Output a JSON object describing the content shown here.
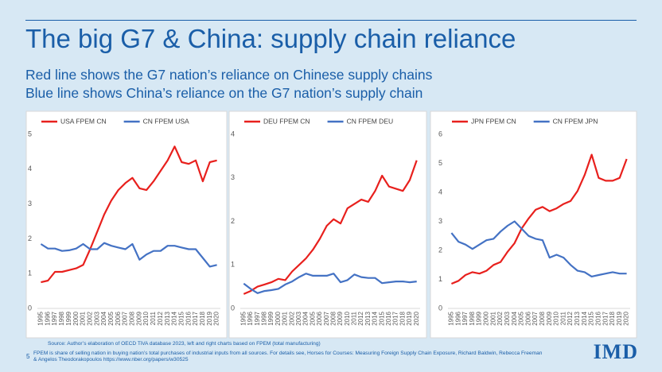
{
  "header": {
    "title": "The big G7 & China: supply chain reliance",
    "subtitles": [
      "Red line shows the G7 nation’s reliance on Chinese supply chains",
      "Blue line shows China’s reliance on the G7 nation’s supply chain"
    ]
  },
  "chart_data": [
    {
      "type": "line",
      "categories": [
        "1995",
        "1996",
        "1997",
        "1998",
        "1999",
        "2000",
        "2001",
        "2002",
        "2003",
        "2004",
        "2005",
        "2006",
        "2007",
        "2008",
        "2009",
        "2010",
        "2011",
        "2012",
        "2013",
        "2014",
        "2015",
        "2016",
        "2017",
        "2018",
        "2019",
        "2020"
      ],
      "series": [
        {
          "name": "USA FPEM CN",
          "color": "#e8201d",
          "values": [
            0.75,
            0.8,
            1.05,
            1.05,
            1.1,
            1.15,
            1.25,
            1.7,
            2.2,
            2.7,
            3.1,
            3.4,
            3.6,
            3.75,
            3.45,
            3.4,
            3.65,
            3.95,
            4.25,
            4.65,
            4.2,
            4.15,
            4.25,
            3.65,
            4.2,
            4.25
          ]
        },
        {
          "name": "CN FPEM USA",
          "color": "#4472c4",
          "values": [
            1.85,
            1.72,
            1.72,
            1.65,
            1.67,
            1.72,
            1.85,
            1.7,
            1.7,
            1.88,
            1.8,
            1.75,
            1.7,
            1.85,
            1.4,
            1.55,
            1.65,
            1.65,
            1.8,
            1.8,
            1.75,
            1.7,
            1.7,
            1.45,
            1.2,
            1.25
          ]
        }
      ],
      "ylim": [
        0,
        5
      ],
      "yticks": [
        0,
        1,
        2,
        3,
        4,
        5
      ]
    },
    {
      "type": "line",
      "categories": [
        "1995",
        "1996",
        "1997",
        "1998",
        "1999",
        "2000",
        "2001",
        "2002",
        "2003",
        "2004",
        "2005",
        "2006",
        "2007",
        "2008",
        "2009",
        "2010",
        "2011",
        "2012",
        "2013",
        "2014",
        "2015",
        "2016",
        "2017",
        "2018",
        "2019",
        "2020"
      ],
      "series": [
        {
          "name": "DEU FPEM CN",
          "color": "#e8201d",
          "values": [
            0.33,
            0.4,
            0.5,
            0.55,
            0.6,
            0.68,
            0.65,
            0.85,
            1.0,
            1.15,
            1.35,
            1.6,
            1.9,
            2.05,
            1.95,
            2.3,
            2.4,
            2.5,
            2.45,
            2.7,
            3.05,
            2.8,
            2.75,
            2.7,
            2.95,
            3.4
          ]
        },
        {
          "name": "CN FPEM DEU",
          "color": "#4472c4",
          "values": [
            0.57,
            0.45,
            0.35,
            0.4,
            0.42,
            0.45,
            0.55,
            0.62,
            0.72,
            0.8,
            0.75,
            0.75,
            0.75,
            0.8,
            0.6,
            0.65,
            0.78,
            0.72,
            0.7,
            0.7,
            0.58,
            0.6,
            0.62,
            0.62,
            0.6,
            0.62
          ]
        }
      ],
      "ylim": [
        0,
        4
      ],
      "yticks": [
        0,
        1,
        2,
        3,
        4
      ]
    },
    {
      "type": "line",
      "categories": [
        "1995",
        "1996",
        "1997",
        "1998",
        "1999",
        "2000",
        "2001",
        "2002",
        "2003",
        "2004",
        "2005",
        "2006",
        "2007",
        "2008",
        "2009",
        "2010",
        "2011",
        "2012",
        "2013",
        "2014",
        "2015",
        "2016",
        "2017",
        "2018",
        "2019",
        "2020"
      ],
      "series": [
        {
          "name": "JPN FPEM CN",
          "color": "#e8201d",
          "values": [
            0.85,
            0.95,
            1.15,
            1.25,
            1.2,
            1.3,
            1.5,
            1.6,
            1.95,
            2.25,
            2.75,
            3.1,
            3.4,
            3.5,
            3.35,
            3.45,
            3.6,
            3.7,
            4.05,
            4.6,
            5.3,
            4.5,
            4.4,
            4.4,
            4.5,
            5.15
          ]
        },
        {
          "name": "CN FPEM JPN",
          "color": "#4472c4",
          "values": [
            2.6,
            2.3,
            2.2,
            2.05,
            2.2,
            2.35,
            2.4,
            2.65,
            2.85,
            3.0,
            2.75,
            2.5,
            2.4,
            2.35,
            1.75,
            1.85,
            1.75,
            1.5,
            1.3,
            1.25,
            1.1,
            1.15,
            1.2,
            1.25,
            1.2,
            1.2
          ]
        }
      ],
      "ylim": [
        0,
        6
      ],
      "yticks": [
        0,
        1,
        2,
        3,
        4,
        5,
        6
      ]
    }
  ],
  "footer": {
    "source": "Source: Author’s elaboration of OECD TiVA database 2023, left and right charts based on FPEM (total manufacturing)",
    "page_number": "5",
    "note_lines": [
      "FPEM is share of selling nation in buying nation’s total purchases of industrial inputs from all sources. For details see, Horses for Courses: Measuring Foreign Supply Chain Exposure, Richard Baldwin, Rebecca Freeman",
      "& Angelos Theodorakopoulos https://www.nber.org/papers/w30525"
    ],
    "logo": "IMD"
  }
}
